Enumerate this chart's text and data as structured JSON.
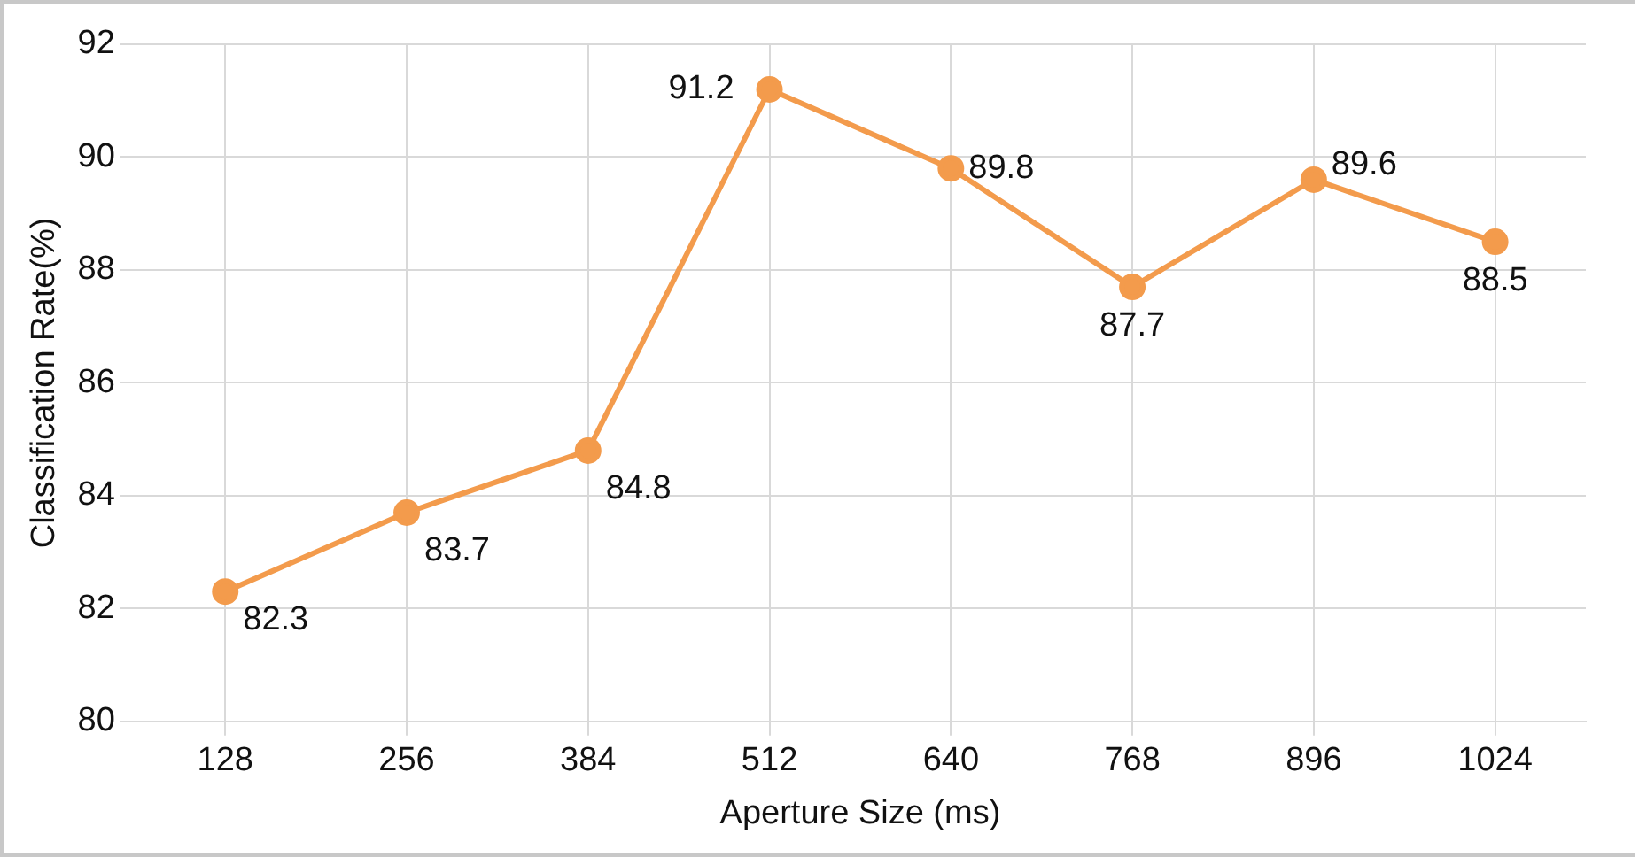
{
  "chart_data": {
    "type": "line",
    "xlabel": "Aperture Size (ms)",
    "ylabel": "Classification Rate(%)",
    "categories": [
      "128",
      "256",
      "384",
      "512",
      "640",
      "768",
      "896",
      "1024"
    ],
    "series": [
      {
        "color": "#f39b4c",
        "values": [
          82.3,
          83.7,
          84.8,
          91.2,
          89.8,
          87.7,
          89.6,
          88.5
        ]
      }
    ],
    "ylim": [
      80,
      92
    ],
    "yticks": [
      80,
      82,
      84,
      86,
      88,
      90,
      92
    ],
    "grid": true,
    "marker": "circle",
    "line_style": "solid",
    "data_labels": true,
    "legend": false
  }
}
